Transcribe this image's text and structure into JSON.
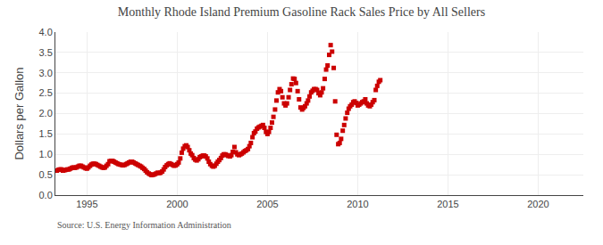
{
  "chart_data": {
    "type": "scatter",
    "title": "Monthly Rhode Island Premium Gasoline Rack Sales Price by All Sellers",
    "y_label": "Dollars per Gallon",
    "annotations": [
      "Source: U.S. Energy Information Administration"
    ],
    "color": "#cc0000",
    "marker": "square",
    "grid": true,
    "xlim": [
      1993.25,
      2022.5
    ],
    "xticks": [
      1995,
      2000,
      2005,
      2010,
      2015,
      2020
    ],
    "ylim": [
      0.0,
      4.0
    ],
    "yticks": [
      {
        "value": 0.0,
        "label": "0.0"
      },
      0.5,
      {
        "value": 1.0,
        "label": "1.0"
      },
      1.5,
      {
        "value": 2.0,
        "label": "2.0"
      },
      2.5,
      {
        "value": 3.0,
        "label": "3.0"
      },
      3.5,
      {
        "value": 4.0,
        "label": "4.0"
      }
    ],
    "x": [
      1993.25,
      1993.33,
      1993.42,
      1993.5,
      1993.58,
      1993.67,
      1993.75,
      1993.83,
      1993.92,
      1994.0,
      1994.08,
      1994.17,
      1994.25,
      1994.33,
      1994.42,
      1994.5,
      1994.58,
      1994.67,
      1994.75,
      1994.83,
      1994.92,
      1995.0,
      1995.08,
      1995.17,
      1995.25,
      1995.33,
      1995.42,
      1995.5,
      1995.58,
      1995.67,
      1995.75,
      1995.83,
      1995.92,
      1996.0,
      1996.08,
      1996.17,
      1996.25,
      1996.33,
      1996.42,
      1996.5,
      1996.58,
      1996.67,
      1996.75,
      1996.83,
      1996.92,
      1997.0,
      1997.08,
      1997.17,
      1997.25,
      1997.33,
      1997.42,
      1997.5,
      1997.58,
      1997.67,
      1997.75,
      1997.83,
      1997.92,
      1998.0,
      1998.08,
      1998.17,
      1998.25,
      1998.33,
      1998.42,
      1998.5,
      1998.58,
      1998.67,
      1998.75,
      1998.83,
      1998.92,
      1999.0,
      1999.08,
      1999.17,
      1999.25,
      1999.33,
      1999.42,
      1999.5,
      1999.58,
      1999.67,
      1999.75,
      1999.83,
      1999.92,
      2000.0,
      2000.08,
      2000.17,
      2000.25,
      2000.33,
      2000.42,
      2000.5,
      2000.58,
      2000.67,
      2000.75,
      2000.83,
      2000.92,
      2001.0,
      2001.08,
      2001.17,
      2001.25,
      2001.33,
      2001.42,
      2001.5,
      2001.58,
      2001.67,
      2001.75,
      2001.83,
      2001.92,
      2002.0,
      2002.08,
      2002.17,
      2002.25,
      2002.33,
      2002.42,
      2002.5,
      2002.58,
      2002.67,
      2002.75,
      2002.83,
      2002.92,
      2003.0,
      2003.08,
      2003.17,
      2003.25,
      2003.33,
      2003.42,
      2003.5,
      2003.58,
      2003.67,
      2003.75,
      2003.83,
      2003.92,
      2004.0,
      2004.08,
      2004.17,
      2004.25,
      2004.33,
      2004.42,
      2004.5,
      2004.58,
      2004.67,
      2004.75,
      2004.83,
      2004.92,
      2005.0,
      2005.08,
      2005.17,
      2005.25,
      2005.33,
      2005.42,
      2005.5,
      2005.58,
      2005.67,
      2005.75,
      2005.83,
      2005.92,
      2006.0,
      2006.08,
      2006.17,
      2006.25,
      2006.33,
      2006.42,
      2006.5,
      2006.58,
      2006.67,
      2006.75,
      2006.83,
      2006.92,
      2007.0,
      2007.08,
      2007.17,
      2007.25,
      2007.33,
      2007.42,
      2007.5,
      2007.58,
      2007.67,
      2007.75,
      2007.83,
      2007.92,
      2008.0,
      2008.08,
      2008.17,
      2008.25,
      2008.33,
      2008.42,
      2008.5,
      2008.58,
      2008.67,
      2008.75,
      2008.83,
      2008.92,
      2009.0,
      2009.08,
      2009.17,
      2009.25,
      2009.33,
      2009.42,
      2009.5,
      2009.58,
      2009.67,
      2009.75,
      2009.83,
      2009.92,
      2010.0,
      2010.08,
      2010.17,
      2010.25,
      2010.33,
      2010.42,
      2010.5,
      2010.58,
      2010.67,
      2010.75,
      2010.83,
      2010.92,
      2011.0,
      2011.08,
      2011.17,
      2011.25
    ],
    "values": [
      0.6,
      0.6,
      0.62,
      0.63,
      0.63,
      0.6,
      0.61,
      0.62,
      0.63,
      0.63,
      0.65,
      0.67,
      0.68,
      0.67,
      0.68,
      0.7,
      0.72,
      0.72,
      0.7,
      0.68,
      0.66,
      0.65,
      0.68,
      0.72,
      0.75,
      0.77,
      0.77,
      0.76,
      0.74,
      0.72,
      0.7,
      0.68,
      0.67,
      0.68,
      0.72,
      0.76,
      0.83,
      0.84,
      0.84,
      0.82,
      0.8,
      0.78,
      0.76,
      0.75,
      0.74,
      0.73,
      0.74,
      0.76,
      0.78,
      0.8,
      0.82,
      0.82,
      0.8,
      0.78,
      0.76,
      0.74,
      0.72,
      0.7,
      0.67,
      0.64,
      0.6,
      0.56,
      0.53,
      0.51,
      0.49,
      0.5,
      0.51,
      0.53,
      0.55,
      0.54,
      0.55,
      0.58,
      0.63,
      0.69,
      0.73,
      0.76,
      0.78,
      0.76,
      0.74,
      0.72,
      0.73,
      0.76,
      0.8,
      0.9,
      1.04,
      1.14,
      1.2,
      1.22,
      1.18,
      1.1,
      1.02,
      0.98,
      0.91,
      0.87,
      0.85,
      0.88,
      0.93,
      0.95,
      0.97,
      0.97,
      0.95,
      0.9,
      0.82,
      0.76,
      0.72,
      0.7,
      0.72,
      0.77,
      0.82,
      0.86,
      0.91,
      0.97,
      1.0,
      1.0,
      0.98,
      0.96,
      0.95,
      0.98,
      1.06,
      1.18,
      1.05,
      1.0,
      0.98,
      1.0,
      1.02,
      1.05,
      1.08,
      1.1,
      1.13,
      1.2,
      1.28,
      1.42,
      1.52,
      1.56,
      1.63,
      1.66,
      1.68,
      1.7,
      1.72,
      1.65,
      1.55,
      1.5,
      1.55,
      1.65,
      1.78,
      1.92,
      2.1,
      2.32,
      2.52,
      2.6,
      2.55,
      2.4,
      2.25,
      2.2,
      2.25,
      2.4,
      2.58,
      2.72,
      2.86,
      2.85,
      2.75,
      2.55,
      2.35,
      2.15,
      2.1,
      2.14,
      2.18,
      2.25,
      2.32,
      2.42,
      2.52,
      2.56,
      2.6,
      2.6,
      2.58,
      2.5,
      2.45,
      2.52,
      2.62,
      2.85,
      3.08,
      3.18,
      3.44,
      3.68,
      3.52,
      3.12,
      2.3,
      1.48,
      1.25,
      1.28,
      1.38,
      1.58,
      1.72,
      1.88,
      2.02,
      2.12,
      2.18,
      2.22,
      2.28,
      2.3,
      2.26,
      2.2,
      2.22,
      2.25,
      2.28,
      2.3,
      2.35,
      2.25,
      2.2,
      2.18,
      2.22,
      2.28,
      2.33,
      2.58,
      2.68,
      2.78,
      2.82
    ]
  }
}
